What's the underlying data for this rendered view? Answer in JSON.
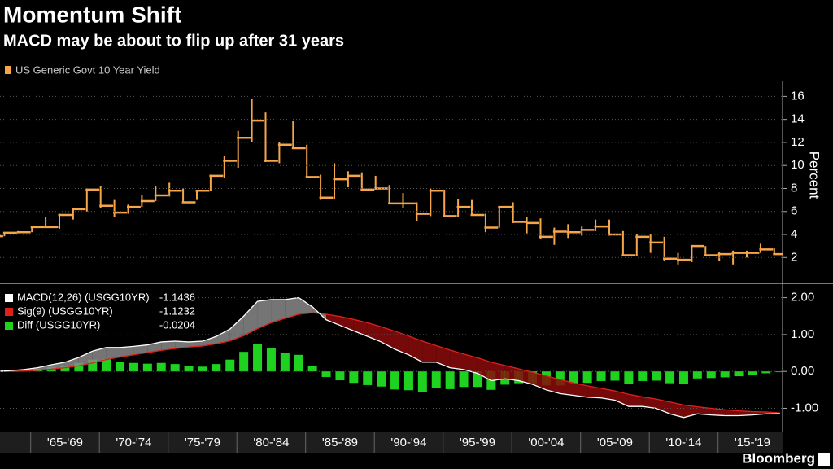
{
  "chart_data": [
    {
      "type": "ohlc-step",
      "title": "Momentum Shift",
      "subtitle": "MACD may be about to flip up after 31 years",
      "series": [
        {
          "name": "US Generic Govt 10 Year Yield",
          "color": "#f5a54a",
          "high": [
            4.1,
            4.2,
            4.3,
            4.7,
            5.5,
            5.8,
            6.2,
            8.0,
            8.2,
            7.0,
            6.6,
            7.4,
            8.2,
            8.5,
            8.0,
            7.8,
            9.2,
            10.8,
            13.0,
            15.8,
            14.6,
            12.0,
            13.9,
            11.8,
            9.2,
            10.2,
            9.5,
            9.4,
            9.1,
            8.3,
            7.6,
            6.8,
            8.0,
            7.9,
            7.1,
            7.0,
            5.8,
            6.4,
            6.8,
            5.5,
            5.4,
            4.6,
            4.9,
            4.7,
            5.3,
            5.3,
            4.3,
            4.0,
            4.0,
            3.8,
            2.4,
            3.0,
            3.0,
            2.5,
            2.6,
            2.6,
            3.2,
            2.8
          ],
          "low": [
            3.8,
            3.85,
            4.1,
            4.2,
            4.6,
            4.5,
            5.3,
            6.0,
            6.3,
            5.5,
            5.8,
            6.4,
            6.9,
            7.3,
            6.8,
            7.0,
            7.8,
            8.9,
            9.8,
            12.0,
            10.3,
            10.2,
            11.5,
            9.0,
            7.0,
            7.1,
            8.1,
            7.8,
            7.9,
            6.7,
            6.3,
            5.2,
            5.6,
            5.6,
            5.5,
            5.7,
            4.2,
            4.6,
            5.0,
            4.1,
            3.6,
            3.1,
            3.7,
            3.9,
            4.3,
            3.9,
            2.1,
            2.1,
            2.4,
            1.7,
            1.4,
            1.6,
            2.1,
            1.7,
            1.4,
            2.0,
            2.4,
            2.3
          ],
          "close": [
            3.85,
            4.15,
            4.2,
            4.65,
            4.65,
            5.7,
            6.2,
            7.9,
            6.5,
            5.9,
            6.4,
            6.9,
            7.4,
            7.8,
            6.8,
            7.8,
            9.1,
            10.4,
            12.4,
            13.9,
            10.4,
            11.8,
            11.5,
            9.0,
            7.2,
            8.8,
            9.1,
            7.9,
            8.0,
            6.7,
            6.7,
            5.8,
            7.8,
            5.6,
            6.4,
            5.7,
            4.6,
            6.4,
            5.1,
            5.0,
            3.8,
            4.25,
            4.2,
            4.4,
            4.7,
            4.0,
            2.2,
            3.8,
            3.3,
            1.9,
            1.8,
            3.0,
            2.2,
            2.3,
            2.4,
            2.4,
            2.7,
            2.3
          ]
        }
      ],
      "period_labels": [
        "'65-'69",
        "'70-'74",
        "'75-'79",
        "'80-'84",
        "'85-'89",
        "'90-'94",
        "'95-'99",
        "'00-'04",
        "'05-'09",
        "'10-'14",
        "'15-'19"
      ],
      "y_label": "Percent",
      "ylim": [
        -0.1,
        17.3
      ],
      "yticks": [
        2,
        4,
        6,
        8,
        10,
        12,
        14,
        16
      ],
      "grid": true
    },
    {
      "type": "macd",
      "series": [
        {
          "name": "MACD(12,26) (USGG10YR)",
          "color": "#ffffff",
          "values": [
            0.0,
            0.02,
            0.05,
            0.1,
            0.18,
            0.25,
            0.38,
            0.55,
            0.65,
            0.65,
            0.68,
            0.72,
            0.8,
            0.82,
            0.8,
            0.82,
            0.95,
            1.15,
            1.5,
            1.9,
            1.95,
            1.95,
            2.0,
            1.75,
            1.4,
            1.25,
            1.1,
            0.95,
            0.8,
            0.6,
            0.45,
            0.25,
            0.25,
            0.1,
            0.05,
            -0.05,
            -0.25,
            -0.2,
            -0.25,
            -0.35,
            -0.5,
            -0.6,
            -0.65,
            -0.7,
            -0.72,
            -0.78,
            -0.95,
            -0.95,
            -1.0,
            -1.15,
            -1.25,
            -1.15,
            -1.18,
            -1.2,
            -1.2,
            -1.18,
            -1.15,
            -1.1436
          ]
        },
        {
          "name": "Sig(9) (USGG10YR)",
          "color": "#e0201b",
          "values": [
            0.0,
            0.0,
            0.01,
            0.03,
            0.06,
            0.1,
            0.15,
            0.23,
            0.32,
            0.39,
            0.45,
            0.51,
            0.57,
            0.62,
            0.66,
            0.69,
            0.75,
            0.83,
            0.97,
            1.16,
            1.32,
            1.44,
            1.55,
            1.59,
            1.55,
            1.49,
            1.41,
            1.32,
            1.21,
            1.09,
            0.96,
            0.82,
            0.7,
            0.58,
            0.47,
            0.37,
            0.25,
            0.16,
            0.07,
            -0.02,
            -0.12,
            -0.22,
            -0.31,
            -0.39,
            -0.46,
            -0.53,
            -0.62,
            -0.69,
            -0.75,
            -0.83,
            -0.91,
            -0.96,
            -1.0,
            -1.04,
            -1.07,
            -1.09,
            -1.1,
            -1.1232
          ]
        },
        {
          "name": "Diff (USGG10YR)",
          "color": "#1fd21f",
          "values": [
            0.0,
            0.02,
            0.04,
            0.07,
            0.12,
            0.15,
            0.23,
            0.32,
            0.33,
            0.26,
            0.23,
            0.21,
            0.23,
            0.2,
            0.14,
            0.13,
            0.2,
            0.32,
            0.53,
            0.74,
            0.63,
            0.51,
            0.45,
            0.16,
            -0.15,
            -0.24,
            -0.31,
            -0.37,
            -0.41,
            -0.49,
            -0.51,
            -0.57,
            -0.45,
            -0.48,
            -0.42,
            -0.42,
            -0.5,
            -0.36,
            -0.32,
            -0.33,
            -0.38,
            -0.38,
            -0.34,
            -0.31,
            -0.26,
            -0.25,
            -0.33,
            -0.26,
            -0.25,
            -0.32,
            -0.34,
            -0.19,
            -0.18,
            -0.16,
            -0.13,
            -0.09,
            -0.05,
            -0.0204
          ]
        }
      ],
      "up_fill": "#8a8a8a",
      "down_fill": "#8b0a0a",
      "ylim": [
        -1.63,
        2.3
      ],
      "yticks": [
        {
          "value": 2,
          "label": "2.00"
        },
        {
          "value": 1,
          "label": "1.00"
        },
        {
          "value": 0,
          "label": "0.00"
        },
        {
          "value": -1,
          "label": "-1.00"
        }
      ],
      "grid": true
    }
  ],
  "footer": {
    "brand": "Bloomberg"
  }
}
